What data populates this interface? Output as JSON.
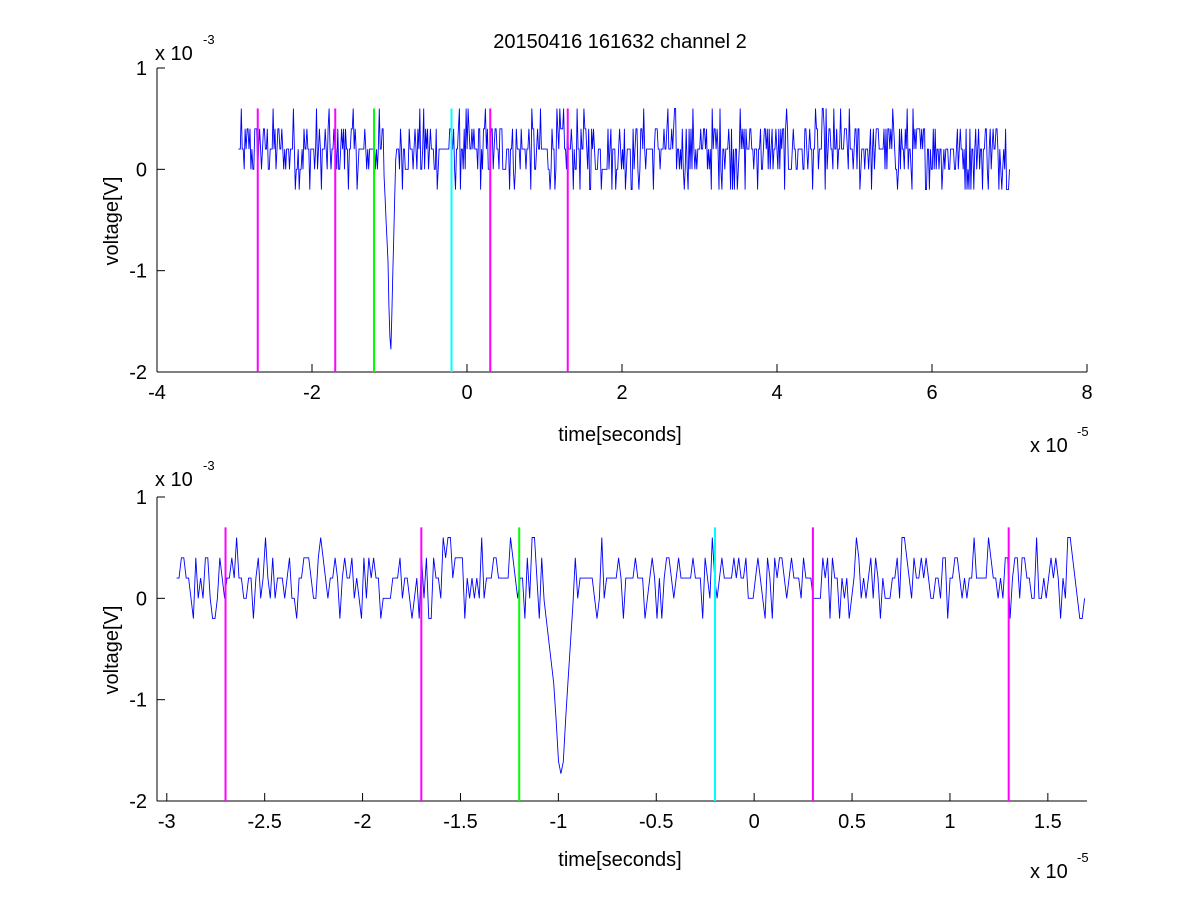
{
  "title": "20150416 161632 channel 2",
  "chart_data": [
    {
      "type": "line",
      "title": "20150416 161632 channel 2",
      "xlabel": "time[seconds]",
      "ylabel": "voltage[V]",
      "x_exponent_label": "x 10",
      "x_exponent": "-5",
      "y_exponent_label": "x 10",
      "y_exponent": "-3",
      "xlim": [
        -4e-05,
        8e-05
      ],
      "ylim": [
        -0.002,
        0.001
      ],
      "xticks": [
        -4e-05,
        -2e-05,
        0,
        2e-05,
        4e-05,
        6e-05,
        8e-05
      ],
      "xtick_labels": [
        "-4",
        "-2",
        "0",
        "2",
        "4",
        "6",
        "8"
      ],
      "yticks": [
        -0.002,
        -0.001,
        0,
        0.001
      ],
      "ytick_labels": [
        "-2",
        "-1",
        "0",
        "1"
      ],
      "grid": false,
      "signal": {
        "color": "#0000ff",
        "x_start": -2.95e-05,
        "x_end": 7e-05,
        "n_points": 800,
        "noise_levels": [
          -0.0002,
          0,
          0.0002,
          0.0004,
          0.0006
        ],
        "spike": {
          "x": [
            -1.08e-05,
            -1.02e-05,
            -1e-05,
            -9.8e-06,
            -9.6e-06,
            -9.2e-06
          ],
          "y": [
            0.0001,
            -0.0009,
            -0.0016,
            -0.0018,
            -0.0011,
            0.0001
          ]
        }
      },
      "markers": [
        {
          "x": -2.7e-05,
          "color": "#ff00ff",
          "y_range": [
            -0.002,
            0.0006
          ]
        },
        {
          "x": -1.7e-05,
          "color": "#ff00ff",
          "y_range": [
            -0.002,
            0.0006
          ]
        },
        {
          "x": -1.2e-05,
          "color": "#00ff00",
          "y_range": [
            -0.002,
            0.0006
          ]
        },
        {
          "x": -2e-06,
          "color": "#00ffff",
          "y_range": [
            -0.002,
            0.0006
          ]
        },
        {
          "x": 3e-06,
          "color": "#ff00ff",
          "y_range": [
            -0.002,
            0.0006
          ]
        },
        {
          "x": 1.3e-05,
          "color": "#ff00ff",
          "y_range": [
            -0.002,
            0.0006
          ]
        }
      ]
    },
    {
      "type": "line",
      "xlabel": "time[seconds]",
      "ylabel": "voltage[V]",
      "x_exponent_label": "x 10",
      "x_exponent": "-5",
      "y_exponent_label": "x 10",
      "y_exponent": "-3",
      "xlim": [
        -3.05e-05,
        1.7e-05
      ],
      "ylim": [
        -0.002,
        0.001
      ],
      "xticks": [
        -3e-05,
        -2.5e-05,
        -2e-05,
        -1.5e-05,
        -1e-05,
        -5e-06,
        0,
        5e-06,
        1e-05,
        1.5e-05
      ],
      "xtick_labels": [
        "-3",
        "-2.5",
        "-2",
        "-1.5",
        "-1",
        "-0.5",
        "0",
        "0.5",
        "1",
        "1.5"
      ],
      "yticks": [
        -0.002,
        -0.001,
        0,
        0.001
      ],
      "ytick_labels": [
        "-2",
        "-1",
        "0",
        "1"
      ],
      "grid": false,
      "signal": {
        "color": "#0000ff",
        "x_start": -2.95e-05,
        "x_end": 1.7e-05,
        "n_points": 380,
        "noise_levels": [
          -0.0002,
          0,
          0.0002,
          0.0004,
          0.0006
        ],
        "spike": {
          "x": [
            -1.08e-05,
            -1.02e-05,
            -1e-05,
            -9.8e-06,
            -9.6e-06,
            -9.2e-06
          ],
          "y": [
            0.0001,
            -0.0009,
            -0.0016,
            -0.0018,
            -0.0011,
            0.0001
          ]
        }
      },
      "markers": [
        {
          "x": -2.7e-05,
          "color": "#ff00ff",
          "y_range": [
            -0.002,
            0.0007
          ]
        },
        {
          "x": -1.7e-05,
          "color": "#ff00ff",
          "y_range": [
            -0.002,
            0.0007
          ]
        },
        {
          "x": -1.2e-05,
          "color": "#00ff00",
          "y_range": [
            -0.002,
            0.0007
          ]
        },
        {
          "x": -2e-06,
          "color": "#00ffff",
          "y_range": [
            -0.002,
            0.0007
          ]
        },
        {
          "x": 3e-06,
          "color": "#ff00ff",
          "y_range": [
            -0.002,
            0.0007
          ]
        },
        {
          "x": 1.3e-05,
          "color": "#ff00ff",
          "y_range": [
            -0.002,
            0.0007
          ]
        }
      ]
    }
  ]
}
